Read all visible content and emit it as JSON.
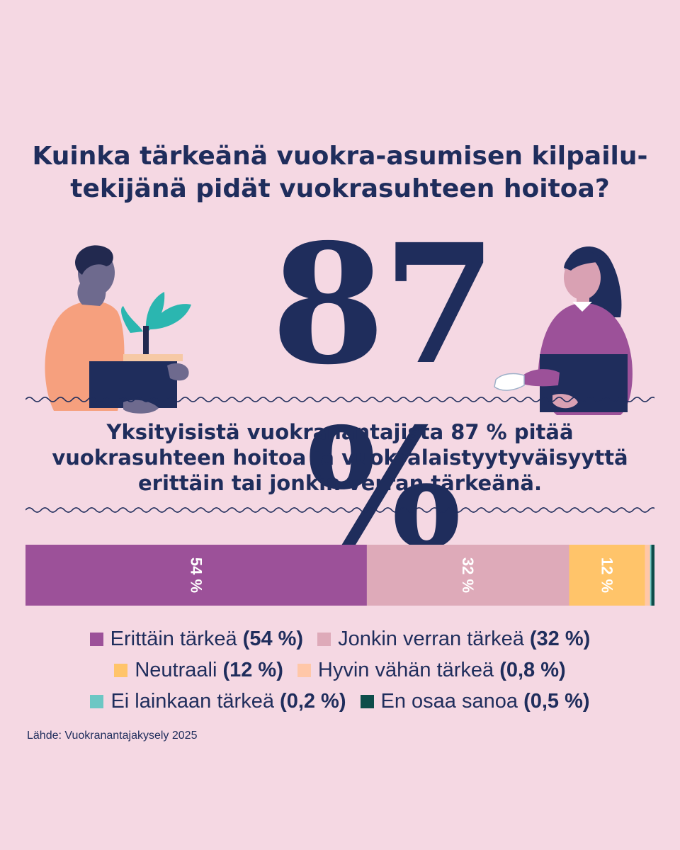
{
  "question": {
    "line1": "Kuinka tärkeänä vuokra-asumisen kilpailu-",
    "line2": "tekijänä pidät vuokrasuhteen hoitoa?"
  },
  "highlight": {
    "value": "87 %"
  },
  "statement": {
    "line1": "Yksityisistä vuokranantajista 87 % pitää",
    "line2": "vuokrasuhteen hoitoa ja vuokralaistyytyväisyyttä",
    "line3": "erittäin tai jonkin verran tärkeänä."
  },
  "chart_data": {
    "type": "bar",
    "orientation": "horizontal-stacked",
    "categories": [
      "Erittäin tärkeä",
      "Jonkin verran tärkeä",
      "Neutraali",
      "Hyvin vähän tärkeä",
      "Ei lainkaan tärkeä",
      "En osaa sanoa"
    ],
    "values": [
      54,
      32,
      12,
      0.8,
      0.2,
      0.5
    ],
    "colors": [
      "#9c5199",
      "#deaab9",
      "#ffc46a",
      "#ffc7a8",
      "#6cc7c4",
      "#0d4d4a"
    ],
    "bar_labels": [
      "54 %",
      "32 %",
      "12 %",
      "",
      "",
      ""
    ],
    "legend": [
      {
        "name": "Erittäin tärkeä",
        "pct": "(54 %)"
      },
      {
        "name": "Jonkin verran tärkeä",
        "pct": "(32 %)"
      },
      {
        "name": "Neutraali",
        "pct": "(12 %)"
      },
      {
        "name": "Hyvin vähän tärkeä",
        "pct": "(0,8 %)"
      },
      {
        "name": "Ei lainkaan tärkeä",
        "pct": "(0,2 %)"
      },
      {
        "name": "En osaa sanoa",
        "pct": "(0,5 %)"
      }
    ],
    "legend_placement": "bottom"
  },
  "source": "Lähde: Vuokranantajakysely 2025",
  "colors": {
    "background": "#f5d8e3",
    "text": "#1f2d5c"
  }
}
